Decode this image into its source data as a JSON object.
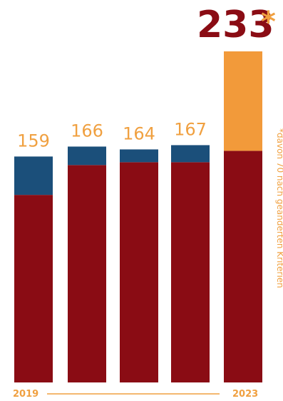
{
  "chart_data": {
    "type": "bar",
    "stacked": true,
    "categories": [
      "2019",
      "",
      "",
      "",
      "2023"
    ],
    "totals": [
      159,
      166,
      164,
      167,
      233
    ],
    "total_labels": [
      "159",
      "166",
      "164",
      "167",
      "233"
    ],
    "series": [
      {
        "values": [
          132,
          153,
          155,
          155,
          163
        ],
        "color": "#8a0c14"
      },
      {
        "values": [
          27,
          13,
          9,
          12,
          0
        ],
        "color": "#1b4f7a"
      },
      {
        "values": [
          0,
          0,
          0,
          0,
          70
        ],
        "color": "#f29a3a"
      }
    ],
    "highlight_asterisk": "*",
    "annotation": "*davon 70 nach geänderten Kriterien",
    "x_start_label": "2019",
    "x_end_label": "2023",
    "ylim": [
      0,
      233
    ],
    "grid": false
  }
}
